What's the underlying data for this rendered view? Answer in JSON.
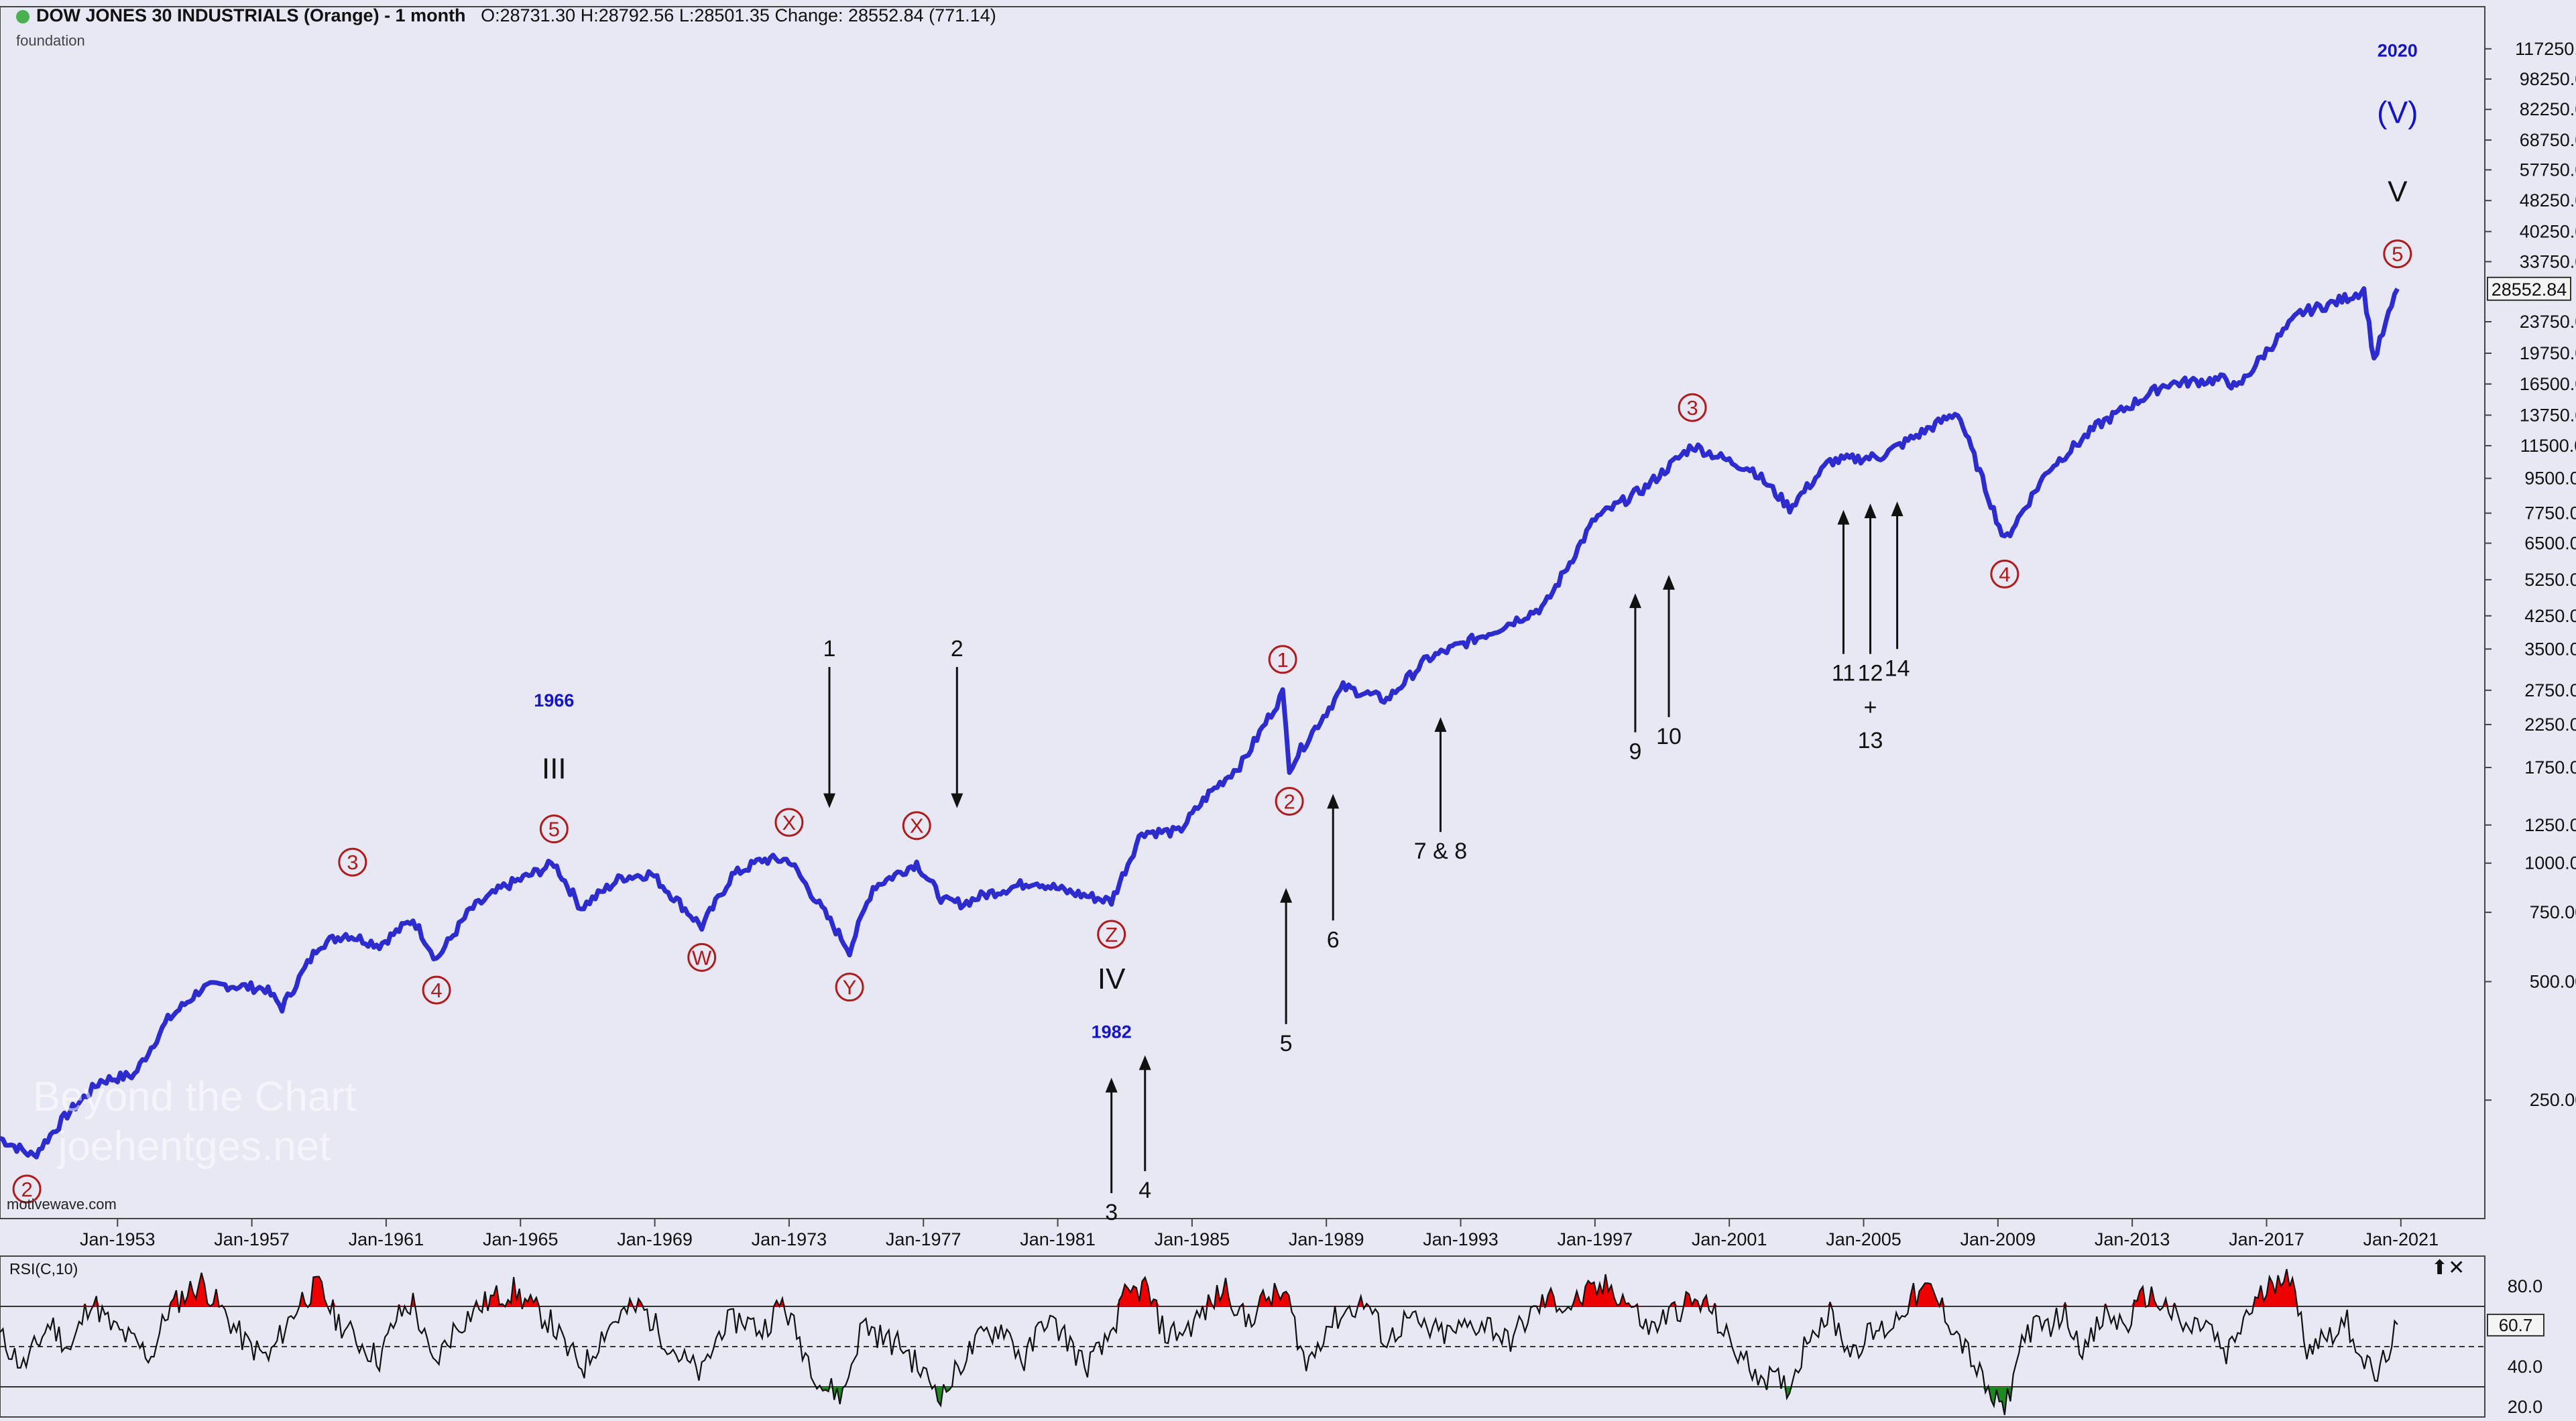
{
  "header": {
    "title": "DOW JONES 30 INDUSTRIALS (Orange) - 1 month",
    "ohlc": "O:28731.30  H:28792.56  L:28501.35  Change: 28552.84 (771.14)",
    "subtitle": "foundation"
  },
  "source": "motivewave.com",
  "watermark": {
    "line1": "Beyond the Chart",
    "line2": "joehentges.net"
  },
  "rsi_panel": {
    "title": "RSI(C,10)",
    "controls": "⬆✕",
    "current_label": "60.7"
  },
  "colors": {
    "price_bar": "#2b2bd6",
    "wave_label": "#b01a1a",
    "year_label": "#1515c8",
    "overbought": "#ee0000",
    "oversold": "#1f8a1f",
    "background": "#e8e8f5"
  },
  "chart_data": [
    {
      "type": "line",
      "scale": "log",
      "ylim": [
        125,
        150000
      ],
      "xlim": [
        1949.5,
        2023.5
      ],
      "price_label": "28552.84",
      "y_ticks": [
        "117250.00",
        "98250.00",
        "82250.00",
        "68750.00",
        "57750.00",
        "48250.00",
        "40250.00",
        "33750.00",
        "23750.00",
        "19750.00",
        "16500.00",
        "13750.00",
        "11500.00",
        "9500.00",
        "7750.00",
        "6500.00",
        "5250.00",
        "4250.00",
        "3500.00",
        "2750.00",
        "2250.00",
        "1750.00",
        "1250.00",
        "1000.00",
        "750.00",
        "500.00",
        "250.00"
      ],
      "x_ticks": [
        "Jan-1953",
        "Jan-1957",
        "Jan-1961",
        "Jan-1965",
        "Jan-1969",
        "Jan-1973",
        "Jan-1977",
        "Jan-1981",
        "Jan-1985",
        "Jan-1989",
        "Jan-1993",
        "Jan-1997",
        "Jan-2001",
        "Jan-2005",
        "Jan-2009",
        "Jan-2013",
        "Jan-2017",
        "Jan-2021"
      ],
      "series": [
        {
          "x": [
            1949.5,
            1950.5,
            1951.5,
            1952.5,
            1953.5,
            1954.5,
            1955.5,
            1956.2,
            1957.4,
            1957.9,
            1959.0,
            1959.8,
            1960.8,
            1961.8,
            1962.5,
            1963.5,
            1964.5,
            1965.5,
            1966.0,
            1966.8,
            1968.0,
            1968.9,
            1970.4,
            1971.3,
            1972.2,
            1973.0,
            1974.8,
            1975.5,
            1976.8,
            1977.6,
            1978.2,
            1978.8,
            1980.3,
            1981.2,
            1982.6,
            1983.5,
            1984.6,
            1985.5,
            1986.5,
            1987.7,
            1987.9,
            1988.5,
            1989.5,
            1990.8,
            1992.0,
            1994.0,
            1995.5,
            1997.0,
            1998.5,
            1999.9,
            2001.0,
            2001.7,
            2002.8,
            2004.0,
            2005.5,
            2007.8,
            2009.2,
            2010.5,
            2012.0,
            2014.0,
            2015.8,
            2016.1,
            2017.0,
            2018.0,
            2019.0,
            2019.9,
            2020.2,
            2020.9
          ],
          "y": [
            200,
            180,
            230,
            280,
            290,
            400,
            480,
            490,
            480,
            430,
            620,
            660,
            620,
            720,
            570,
            760,
            870,
            950,
            1000,
            770,
            920,
            940,
            690,
            930,
            1020,
            1020,
            600,
            870,
            1000,
            800,
            790,
            830,
            900,
            850,
            800,
            1200,
            1200,
            1500,
            1800,
            2700,
            1750,
            2100,
            2800,
            2600,
            3300,
            3900,
            4500,
            7500,
            9000,
            11500,
            10500,
            10000,
            8000,
            10500,
            10800,
            14000,
            6600,
            10000,
            13000,
            16500,
            17000,
            16000,
            20000,
            25000,
            26500,
            28500,
            19000,
            28800
          ]
        }
      ],
      "wave_labels": [
        {
          "text": "2",
          "x": 1950.3,
          "y": 178,
          "below": true
        },
        {
          "text": "3",
          "x": 1960.0,
          "y": 840,
          "below": false
        },
        {
          "text": "4",
          "x": 1962.5,
          "y": 570,
          "below": true
        },
        {
          "text": "5",
          "x": 1966.0,
          "y": 1020,
          "below": false
        },
        {
          "text": "W",
          "x": 1970.4,
          "y": 690,
          "below": true
        },
        {
          "text": "X",
          "x": 1973.0,
          "y": 1060,
          "below": false
        },
        {
          "text": "Y",
          "x": 1974.8,
          "y": 580,
          "below": true
        },
        {
          "text": "X",
          "x": 1976.8,
          "y": 1040,
          "below": false
        },
        {
          "text": "Z",
          "x": 1982.6,
          "y": 790,
          "below": true
        },
        {
          "text": "1",
          "x": 1987.7,
          "y": 2750,
          "below": false
        },
        {
          "text": "2",
          "x": 1987.9,
          "y": 1720,
          "below": true
        },
        {
          "text": "3",
          "x": 1999.9,
          "y": 12000,
          "below": false
        },
        {
          "text": "4",
          "x": 2009.2,
          "y": 6500,
          "below": true
        },
        {
          "text": "5",
          "x": 2020.9,
          "y": 29500,
          "below": false
        }
      ],
      "degree_labels": [
        {
          "text": "III",
          "x": 1966.0,
          "y": 1640
        },
        {
          "text": "IV",
          "x": 1982.6,
          "y": 480
        },
        {
          "text": "V",
          "x": 2020.9,
          "y": 48000
        },
        {
          "text": "(V)",
          "x": 2020.9,
          "y": 76000
        }
      ],
      "year_labels": [
        {
          "text": "1966",
          "x": 1966.0,
          "y": 2500
        },
        {
          "text": "1982",
          "x": 1982.6,
          "y": 360
        },
        {
          "text": "2020",
          "x": 2020.9,
          "y": 112000
        }
      ],
      "arrows": [
        {
          "text": "1",
          "x": 1974.2,
          "dir": "down",
          "y_top": 3150,
          "y_tip": 1380,
          "label_above": true
        },
        {
          "text": "2",
          "x": 1978.0,
          "dir": "down",
          "y_top": 3150,
          "y_tip": 1380,
          "label_above": true
        },
        {
          "text": "3",
          "x": 1982.6,
          "dir": "up",
          "y_tip": 285,
          "y_base": 145,
          "label_above": false
        },
        {
          "text": "4",
          "x": 1983.6,
          "dir": "up",
          "y_tip": 325,
          "y_base": 165,
          "label_above": false
        },
        {
          "text": "5",
          "x": 1987.8,
          "dir": "up",
          "y_tip": 865,
          "y_base": 390,
          "label_above": false
        },
        {
          "text": "6",
          "x": 1989.2,
          "dir": "up",
          "y_tip": 1500,
          "y_base": 715,
          "label_above": false
        },
        {
          "text": "7 &  8",
          "x": 1992.4,
          "dir": "up",
          "y_tip": 2350,
          "y_base": 1200,
          "label_above": false
        },
        {
          "text": "9",
          "x": 1998.2,
          "dir": "up",
          "y_tip": 4850,
          "y_base": 2150,
          "label_above": false
        },
        {
          "text": "10",
          "x": 1999.2,
          "dir": "up",
          "y_tip": 5400,
          "y_base": 2350,
          "label_above": false
        },
        {
          "text": "11",
          "x": 2004.4,
          "dir": "up",
          "y_tip": 7900,
          "y_base": 3400,
          "label_above": false
        },
        {
          "text": "12",
          "x": 2005.2,
          "dir": "up",
          "y_tip": 8200,
          "y_base": 3400,
          "label_above": false
        },
        {
          "text": "14",
          "x": 2006.0,
          "dir": "up",
          "y_tip": 8300,
          "y_base": 3500,
          "label_above": false
        }
      ],
      "extra_text": [
        {
          "text": "+",
          "x": 2005.2,
          "y": 2380
        },
        {
          "text": "13",
          "x": 2005.2,
          "y": 1960
        }
      ]
    },
    {
      "type": "line",
      "title": "RSI(C,10)",
      "ylim": [
        15,
        95
      ],
      "y_ticks": [
        "80.0",
        "40.0",
        "20.0"
      ],
      "levels": {
        "overbought": 70,
        "mid": 50,
        "oversold": 30
      },
      "current": 60.7,
      "series": [
        {
          "x": [
            1949.5,
            1950.2,
            1951.0,
            1951.6,
            1952.2,
            1952.8,
            1953.5,
            1954.0,
            1954.5,
            1955.0,
            1955.5,
            1956.2,
            1956.8,
            1957.5,
            1958.0,
            1958.5,
            1959.0,
            1959.5,
            1960.2,
            1960.8,
            1961.3,
            1961.8,
            1962.4,
            1963.0,
            1963.6,
            1964.2,
            1964.8,
            1965.3,
            1965.9,
            1966.4,
            1966.9,
            1967.5,
            1968.0,
            1968.6,
            1969.2,
            1969.8,
            1970.4,
            1971.0,
            1971.6,
            1972.2,
            1972.8,
            1973.4,
            1974.0,
            1974.6,
            1975.2,
            1975.8,
            1976.4,
            1977.0,
            1977.6,
            1978.2,
            1978.8,
            1979.4,
            1980.0,
            1980.6,
            1981.2,
            1981.8,
            1982.4,
            1983.0,
            1983.6,
            1984.2,
            1984.8,
            1985.4,
            1986.0,
            1986.6,
            1987.2,
            1987.8,
            1988.4,
            1989.0,
            1989.6,
            1990.2,
            1990.8,
            1991.4,
            1992.0,
            1992.6,
            1993.2,
            1993.8,
            1994.4,
            1995.0,
            1995.6,
            1996.2,
            1996.8,
            1997.4,
            1998.0,
            1998.6,
            1999.2,
            1999.8,
            2000.4,
            2001.0,
            2001.6,
            2002.2,
            2002.8,
            2003.4,
            2004.0,
            2004.6,
            2005.2,
            2005.8,
            2006.4,
            2007.0,
            2007.6,
            2008.2,
            2008.8,
            2009.2,
            2009.8,
            2010.4,
            2011.0,
            2011.6,
            2012.2,
            2012.8,
            2013.4,
            2014.0,
            2014.6,
            2015.2,
            2015.8,
            2016.4,
            2017.0,
            2017.6,
            2018.2,
            2018.8,
            2019.4,
            2020.0,
            2020.3,
            2020.9
          ],
          "y": [
            55,
            40,
            62,
            48,
            74,
            60,
            52,
            45,
            68,
            76,
            82,
            66,
            52,
            44,
            60,
            74,
            80,
            64,
            52,
            44,
            64,
            72,
            40,
            58,
            68,
            74,
            78,
            70,
            62,
            48,
            40,
            58,
            66,
            70,
            56,
            44,
            36,
            60,
            64,
            58,
            72,
            50,
            30,
            26,
            62,
            54,
            50,
            36,
            26,
            44,
            56,
            60,
            42,
            64,
            56,
            40,
            50,
            74,
            80,
            56,
            58,
            68,
            80,
            62,
            74,
            76,
            40,
            60,
            68,
            72,
            52,
            64,
            58,
            56,
            60,
            62,
            52,
            64,
            74,
            70,
            76,
            80,
            72,
            58,
            66,
            72,
            70,
            52,
            40,
            34,
            30,
            58,
            66,
            48,
            56,
            60,
            74,
            78,
            62,
            44,
            24,
            18,
            58,
            60,
            66,
            48,
            66,
            60,
            76,
            70,
            58,
            62,
            44,
            66,
            78,
            90,
            50,
            56,
            62,
            40,
            34,
            61
          ]
        }
      ]
    }
  ]
}
